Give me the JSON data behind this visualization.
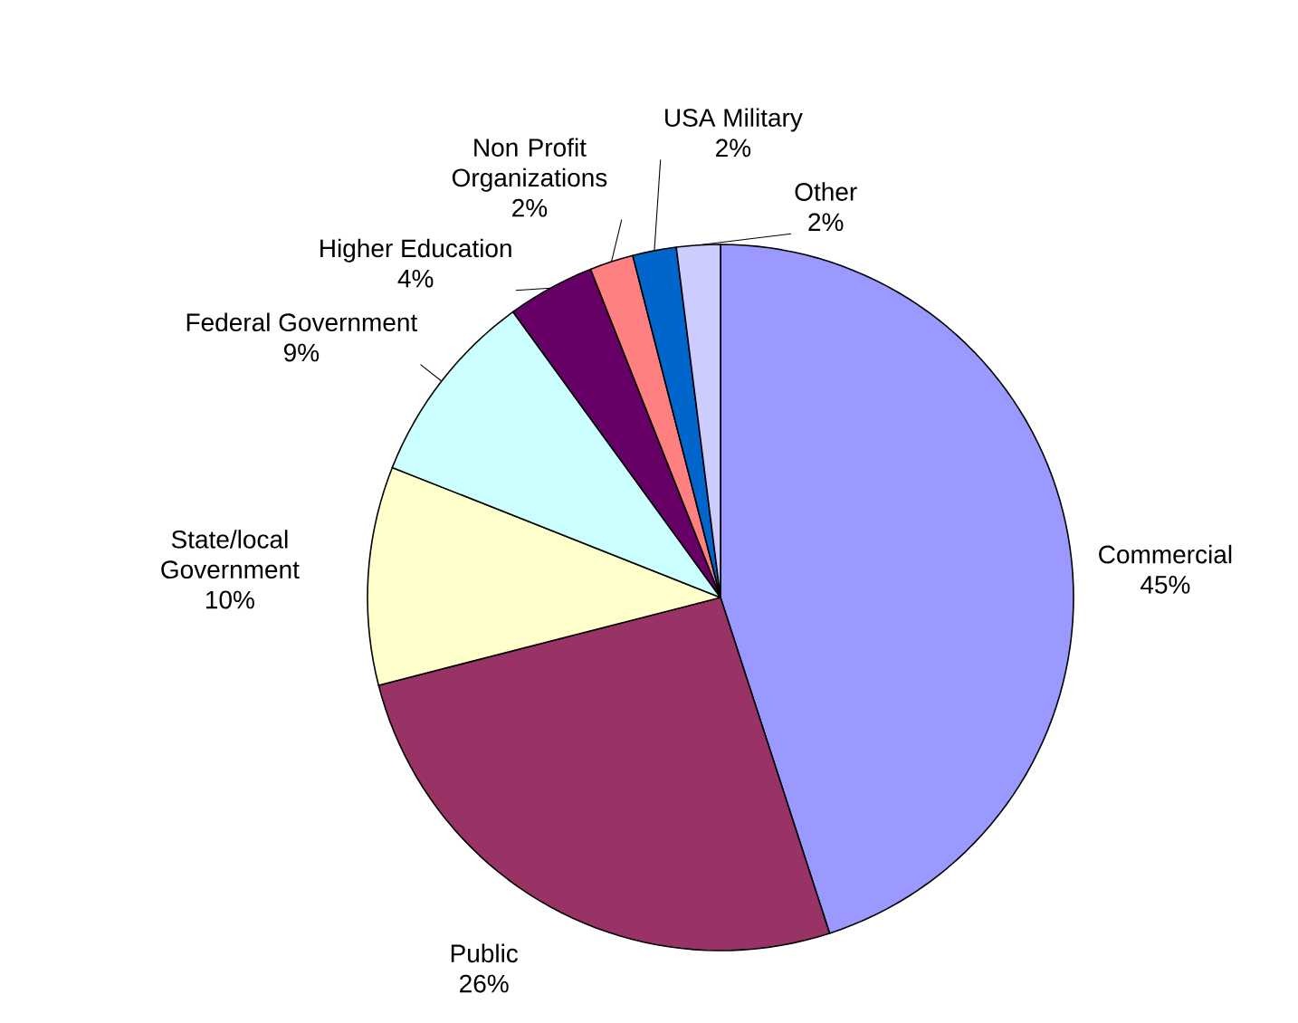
{
  "chart_data": {
    "type": "pie",
    "categories": [
      "Commercial",
      "Public",
      "State/local Government",
      "Federal Government",
      "Higher Education",
      "Non Profit Organizations",
      "USA Military",
      "Other"
    ],
    "values": [
      45,
      26,
      10,
      9,
      4,
      2,
      2,
      2
    ],
    "value_labels": [
      "45%",
      "26%",
      "10%",
      "9%",
      "4%",
      "2%",
      "2%",
      "2%"
    ],
    "colors": [
      "#9999ff",
      "#993366",
      "#ffffcc",
      "#ccffff",
      "#660066",
      "#ff8080",
      "#0066cc",
      "#ccccff"
    ]
  }
}
